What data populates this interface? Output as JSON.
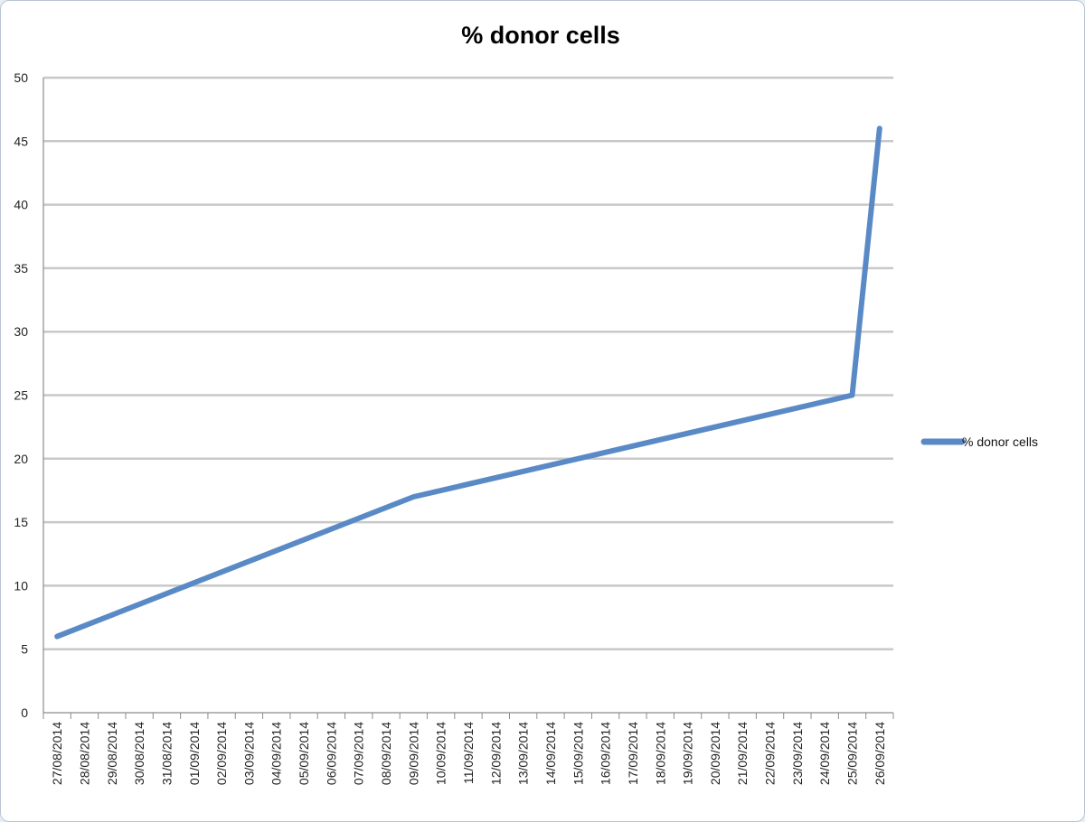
{
  "chart_data": {
    "type": "line",
    "title": "% donor cells",
    "xlabel": "",
    "ylabel": "",
    "ylim": [
      0,
      50
    ],
    "yticks": [
      0,
      5,
      10,
      15,
      20,
      25,
      30,
      35,
      40,
      45,
      50
    ],
    "categories": [
      "27/08/2014",
      "28/08/2014",
      "29/08/2014",
      "30/08/2014",
      "31/08/2014",
      "01/09/2014",
      "02/09/2014",
      "03/09/2014",
      "04/09/2014",
      "05/09/2014",
      "06/09/2014",
      "07/09/2014",
      "08/09/2014",
      "09/09/2014",
      "10/09/2014",
      "11/09/2014",
      "12/09/2014",
      "13/09/2014",
      "14/09/2014",
      "15/09/2014",
      "16/09/2014",
      "17/09/2014",
      "18/09/2014",
      "19/09/2014",
      "20/09/2014",
      "21/09/2014",
      "22/09/2014",
      "23/09/2014",
      "24/09/2014",
      "25/09/2014",
      "26/09/2014"
    ],
    "series": [
      {
        "name": "% donor cells",
        "color": "#5a8ac6",
        "points": [
          {
            "x": "27/08/2014",
            "y": 6
          },
          {
            "x": "09/09/2014",
            "y": 17
          },
          {
            "x": "25/09/2014",
            "y": 25
          },
          {
            "x": "26/09/2014",
            "y": 46
          }
        ]
      }
    ],
    "grid": true,
    "legend_position": "right"
  }
}
